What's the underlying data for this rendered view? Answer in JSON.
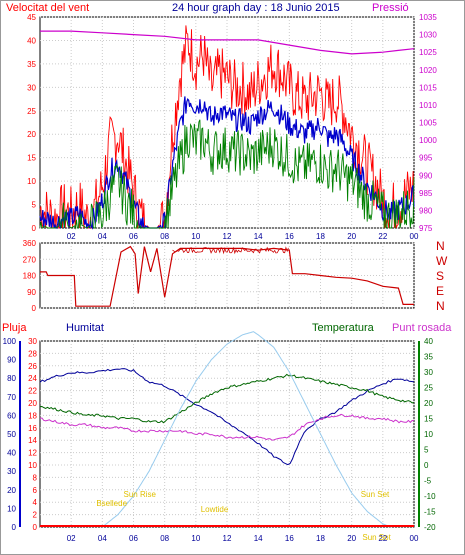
{
  "page": {
    "title_left": "Velocitat del vent",
    "title_center": "24 hour graph day : 18 Junio 2015",
    "title_right": "Pressió"
  },
  "colors": {
    "border": "#000000",
    "gust": "#ff0000",
    "avg_wind": "#0000cc",
    "wind_min": "#008000",
    "pressure": "#cc00cc",
    "wind_dir": "#cc0000",
    "rain": "#ff0000",
    "humidity": "#000099",
    "temperature": "#006600",
    "dew_point": "#cc33cc",
    "solar": "#99ccee",
    "sun_events": "#e0c000",
    "axis_blue": "#0000cc",
    "axis_green": "#008000",
    "axis_red": "#ff0000",
    "axis_pressure": "#cc00cc",
    "axis_dir": "#cc0000"
  },
  "chart_data": [
    {
      "type": "line",
      "name": "wind",
      "x_ticks": [
        "02",
        "04",
        "06",
        "08",
        "10",
        "12",
        "14",
        "16",
        "18",
        "20",
        "22",
        "00"
      ],
      "xlim": [
        0,
        24
      ],
      "ylim": [
        0,
        45
      ],
      "yticks": [
        0,
        5,
        10,
        15,
        20,
        25,
        30,
        35,
        40,
        45
      ],
      "y2lim": [
        975,
        1035
      ],
      "y2ticks": [
        975,
        980,
        985,
        990,
        995,
        1000,
        1005,
        1010,
        1015,
        1020,
        1025,
        1030,
        1035
      ],
      "series": [
        {
          "key": "gust",
          "x": [
            0,
            0.5,
            1,
            1.5,
            2,
            2.5,
            3,
            3.5,
            4,
            4.5,
            5,
            5.5,
            6,
            6.5,
            7,
            7.5,
            8,
            8.5,
            9,
            9.5,
            10,
            10.5,
            11,
            11.5,
            12,
            12.5,
            13,
            13.5,
            14,
            14.5,
            15,
            15.5,
            16,
            16.5,
            17,
            17.5,
            18,
            18.5,
            19,
            19.5,
            20,
            20.5,
            21,
            21.5,
            22,
            22.5,
            23,
            23.5,
            24
          ],
          "y": [
            4,
            3,
            2,
            4,
            3,
            5,
            2,
            4,
            9,
            18,
            20,
            14,
            8,
            2,
            0,
            0,
            2,
            20,
            33,
            40,
            35,
            37,
            30,
            33,
            32,
            30,
            30,
            28,
            31,
            33,
            35,
            33,
            30,
            28,
            27,
            28,
            29,
            26,
            28,
            25,
            20,
            17,
            13,
            10,
            6,
            4,
            5,
            7,
            9
          ]
        },
        {
          "key": "avg_wind",
          "x": [
            0,
            0.5,
            1,
            1.5,
            2,
            2.5,
            3,
            3.5,
            4,
            4.5,
            5,
            5.5,
            6,
            6.5,
            7,
            7.5,
            8,
            8.5,
            9,
            9.5,
            10,
            10.5,
            11,
            11.5,
            12,
            12.5,
            13,
            13.5,
            14,
            14.5,
            15,
            15.5,
            16,
            16.5,
            17,
            17.5,
            18,
            18.5,
            19,
            19.5,
            20,
            20.5,
            21,
            21.5,
            22,
            22.5,
            23,
            23.5,
            24
          ],
          "y": [
            2,
            2,
            1,
            2,
            2,
            3,
            1,
            2,
            6,
            12,
            14,
            10,
            5,
            1,
            0,
            0,
            1,
            13,
            22,
            28,
            26,
            27,
            23,
            25,
            24,
            23,
            23,
            22,
            24,
            25,
            26,
            24,
            22,
            21,
            20,
            21,
            22,
            19,
            20,
            18,
            15,
            12,
            9,
            7,
            4,
            3,
            4,
            5,
            7
          ]
        },
        {
          "key": "wind_min",
          "x": [
            0,
            0.5,
            1,
            1.5,
            2,
            2.5,
            3,
            3.5,
            4,
            4.5,
            5,
            5.5,
            6,
            6.5,
            7,
            7.5,
            8,
            8.5,
            9,
            9.5,
            10,
            10.5,
            11,
            11.5,
            12,
            12.5,
            13,
            13.5,
            14,
            14.5,
            15,
            15.5,
            16,
            16.5,
            17,
            17.5,
            18,
            18.5,
            19,
            19.5,
            20,
            20.5,
            21,
            21.5,
            22,
            22.5,
            23,
            23.5,
            24
          ],
          "y": [
            1,
            0,
            0,
            1,
            0,
            1,
            0,
            1,
            3,
            7,
            10,
            6,
            3,
            0,
            0,
            0,
            0,
            8,
            14,
            20,
            18,
            19,
            16,
            17,
            17,
            16,
            16,
            15,
            16,
            17,
            18,
            16,
            15,
            13,
            13,
            14,
            14,
            12,
            13,
            11,
            10,
            8,
            6,
            5,
            3,
            2,
            3,
            4,
            6
          ]
        },
        {
          "key": "pressure",
          "x": [
            0,
            2,
            4,
            6,
            8,
            10,
            12,
            14,
            16,
            18,
            20,
            22,
            23,
            24
          ],
          "y": [
            1031,
            1031,
            1030.5,
            1030,
            1029.5,
            1028.5,
            1028.5,
            1028.5,
            1027,
            1025.5,
            1024.5,
            1025,
            1025.5,
            1026
          ]
        }
      ]
    },
    {
      "type": "line",
      "name": "wind_direction",
      "right_labels": [
        "N",
        "W",
        "S",
        "E",
        "N"
      ],
      "yticks": [
        0,
        90,
        180,
        270,
        360
      ],
      "ylim": [
        0,
        360
      ],
      "series": [
        {
          "key": "wind_dir",
          "x": [
            0,
            0.4,
            0.5,
            2.2,
            2.3,
            4.5,
            5.2,
            5.8,
            6.1,
            6.3,
            6.7,
            7.1,
            7.5,
            8,
            8.5,
            9,
            10,
            11,
            12,
            13,
            14,
            15,
            16,
            16.2,
            17,
            18,
            19,
            20,
            21,
            22,
            23,
            23.3,
            24
          ],
          "y": [
            200,
            200,
            180,
            180,
            10,
            10,
            310,
            340,
            300,
            80,
            340,
            200,
            330,
            60,
            300,
            330,
            330,
            330,
            330,
            330,
            320,
            330,
            320,
            190,
            190,
            180,
            170,
            165,
            150,
            120,
            110,
            20,
            20
          ]
        }
      ]
    },
    {
      "type": "line",
      "name": "climate",
      "legend": [
        "Pluja",
        "Humitat",
        "Temperatura",
        "Punt rosada"
      ],
      "hum_ticks": [
        0,
        10,
        20,
        30,
        40,
        50,
        60,
        70,
        80,
        90,
        100
      ],
      "rain_ticks": [
        0,
        2,
        4,
        6,
        8,
        10,
        12,
        14,
        16,
        18,
        20,
        22,
        24,
        26,
        28,
        30
      ],
      "temp_ticks": [
        -20,
        -15,
        -10,
        -5,
        0,
        5,
        10,
        15,
        20,
        25,
        30,
        35,
        40
      ],
      "hum_lim": [
        0,
        100
      ],
      "temp_lim": [
        -20,
        40
      ],
      "sun_labels": {
        "twilight": "Bsellede",
        "sunrise": "Sun Rise",
        "noon": "Lowtide",
        "sunset": "Sun Set",
        "dusk": "Sun Sot"
      },
      "series": [
        {
          "key": "humidity",
          "x": [
            0,
            1,
            2,
            3,
            4,
            5,
            6,
            7,
            8,
            9,
            10,
            11,
            12,
            13,
            14,
            15,
            16,
            16.5,
            17,
            18,
            19,
            20,
            21,
            22,
            23,
            24
          ],
          "y": [
            78,
            81,
            83,
            83,
            84,
            85,
            84,
            78,
            76,
            71,
            66,
            62,
            56,
            51,
            45,
            38,
            33,
            43,
            52,
            58,
            62,
            68,
            73,
            77,
            80,
            78
          ]
        },
        {
          "key": "temperature",
          "x": [
            0,
            1,
            2,
            3,
            4,
            5,
            6,
            7,
            8,
            9,
            10,
            11,
            12,
            13,
            14,
            15,
            16,
            17,
            18,
            19,
            20,
            21,
            22,
            23,
            24
          ],
          "y": [
            19,
            18,
            17,
            16,
            16,
            15,
            15,
            14,
            14,
            17,
            20,
            23,
            25,
            26,
            27,
            28,
            29,
            28,
            27,
            26,
            25,
            24,
            22,
            21,
            20
          ]
        },
        {
          "key": "dew_point",
          "x": [
            0,
            1,
            2,
            3,
            4,
            5,
            6,
            7,
            8,
            9,
            10,
            11,
            12,
            13,
            14,
            15,
            16,
            17,
            18,
            19,
            20,
            21,
            22,
            23,
            24
          ],
          "y": [
            15,
            14,
            13,
            13,
            12,
            12,
            11,
            11,
            11,
            11,
            10,
            10,
            9,
            9,
            9,
            8,
            9,
            13,
            15,
            16,
            16,
            15,
            15,
            14,
            14
          ]
        },
        {
          "key": "solar",
          "x": [
            4,
            5,
            6,
            7,
            8,
            9,
            10,
            11,
            12,
            13,
            13.7,
            14,
            15,
            16,
            17,
            18,
            19,
            20,
            21,
            22,
            22.5
          ],
          "y": [
            0,
            4,
            10,
            18,
            28,
            38,
            47,
            54,
            59,
            62,
            63,
            62,
            58,
            50,
            40,
            30,
            20,
            11,
            5,
            1,
            0
          ]
        },
        {
          "key": "rain",
          "x": [
            0,
            24
          ],
          "y": [
            0,
            0
          ]
        }
      ]
    }
  ]
}
